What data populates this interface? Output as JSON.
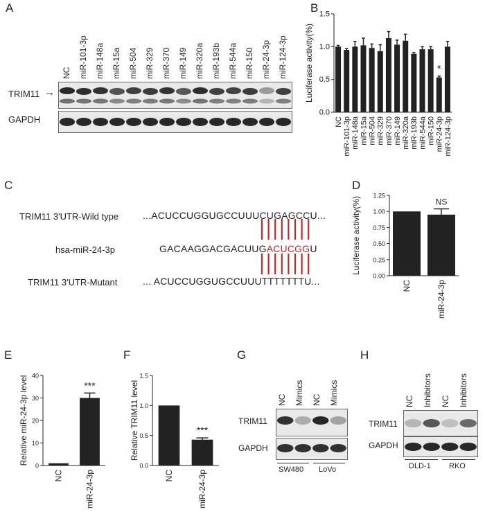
{
  "panels": {
    "A": {
      "label": "A",
      "lanes": [
        "NC",
        "miR-101-3p",
        "miR-148a",
        "miR-15a",
        "miR-504",
        "miR-329",
        "miR-370",
        "miR-149",
        "miR-320a",
        "miR-193b",
        "miR-544a",
        "miR-150",
        "miR-24-3p",
        "miR-124-3p"
      ],
      "rows": [
        "TRIM11",
        "GAPDH"
      ],
      "arrow": "→"
    },
    "C": {
      "label": "C",
      "wild_label": "TRIM11 3'UTR-Wild type",
      "mir_label": "hsa-miR-24-3p",
      "mutant_label": "TRIM11 3'UTR-Mutant",
      "wild_seq": "...ACUCCUGGUGCCUUUCUGAGCCU...",
      "mir_seq_prefix": "GACAAGGACGACUUG",
      "mir_seq_seed": "ACUCGG",
      "mir_seq_suffix": "U",
      "mutant_seq": "... ACUCCUGGUGCCUUUTTTTTTTU...",
      "seed_color": "#c0282a"
    },
    "G": {
      "label": "G",
      "lanes": [
        "NC",
        "Mimics",
        "NC",
        "Mimics"
      ],
      "rows": [
        "TRIM11",
        "GAPDH"
      ],
      "cell_lines": [
        "SW480",
        "LoVo"
      ]
    },
    "H": {
      "label": "H",
      "lanes": [
        "NC",
        "Inhibitors",
        "NC",
        "Inhibitors"
      ],
      "rows": [
        "TRIM11",
        "GAPDH"
      ],
      "cell_lines": [
        "DLD-1",
        "RKO"
      ]
    }
  },
  "chart_data": [
    {
      "panel": "B",
      "type": "bar",
      "categories": [
        "NC",
        "miR-101-3p",
        "miR-148a",
        "miR-15a",
        "miR-504",
        "miR-329",
        "miR-370",
        "miR-149",
        "miR-320a",
        "miR-193b",
        "miR-544a",
        "miR-150",
        "miR-24-3p",
        "miR-124-3p"
      ],
      "values": [
        1.0,
        0.95,
        1.0,
        1.02,
        0.98,
        0.93,
        1.13,
        1.03,
        1.09,
        0.89,
        0.96,
        0.96,
        0.53,
        1.0
      ],
      "errors": [
        0.02,
        0.02,
        0.08,
        0.11,
        0.06,
        0.1,
        0.1,
        0.07,
        0.1,
        0.02,
        0.04,
        0.04,
        0.02,
        0.08
      ],
      "annotations": [
        {
          "category": "miR-24-3p",
          "text": "*"
        }
      ],
      "ylabel": "Luciferase activity(%)",
      "ylim": [
        0,
        1.5
      ],
      "yticks": [
        "0.0",
        "0.5",
        "1.0",
        "1.5"
      ]
    },
    {
      "panel": "D",
      "type": "bar",
      "categories": [
        "NC",
        "miR-24-3p"
      ],
      "values": [
        1.0,
        0.95
      ],
      "errors": [
        0,
        0.09
      ],
      "annotations": [
        {
          "category": "miR-24-3p",
          "text": "NS"
        }
      ],
      "ylabel": "Luciferase activity(%)",
      "ylim": [
        0,
        1.25
      ],
      "yticks": [
        "0.00",
        "0.25",
        "0.50",
        "0.75",
        "1.00",
        "1.25"
      ]
    },
    {
      "panel": "E",
      "type": "bar",
      "categories": [
        "NC",
        "miR-24-3p"
      ],
      "values": [
        1.0,
        30.0
      ],
      "errors": [
        0,
        2.2
      ],
      "annotations": [
        {
          "category": "miR-24-3p",
          "text": "***"
        }
      ],
      "ylabel": "Relative miR-24-3p level",
      "ylim": [
        0,
        40
      ],
      "yticks": [
        "0",
        "10",
        "20",
        "30",
        "40"
      ]
    },
    {
      "panel": "F",
      "type": "bar",
      "categories": [
        "NC",
        "miR-24-3p"
      ],
      "values": [
        1.0,
        0.43
      ],
      "errors": [
        0,
        0.03
      ],
      "annotations": [
        {
          "category": "miR-24-3p",
          "text": "***"
        }
      ],
      "ylabel": "Relative TRIM11 level",
      "ylim": [
        0,
        1.5
      ],
      "yticks": [
        "0.0",
        "0.5",
        "1.0",
        "1.5"
      ]
    }
  ]
}
